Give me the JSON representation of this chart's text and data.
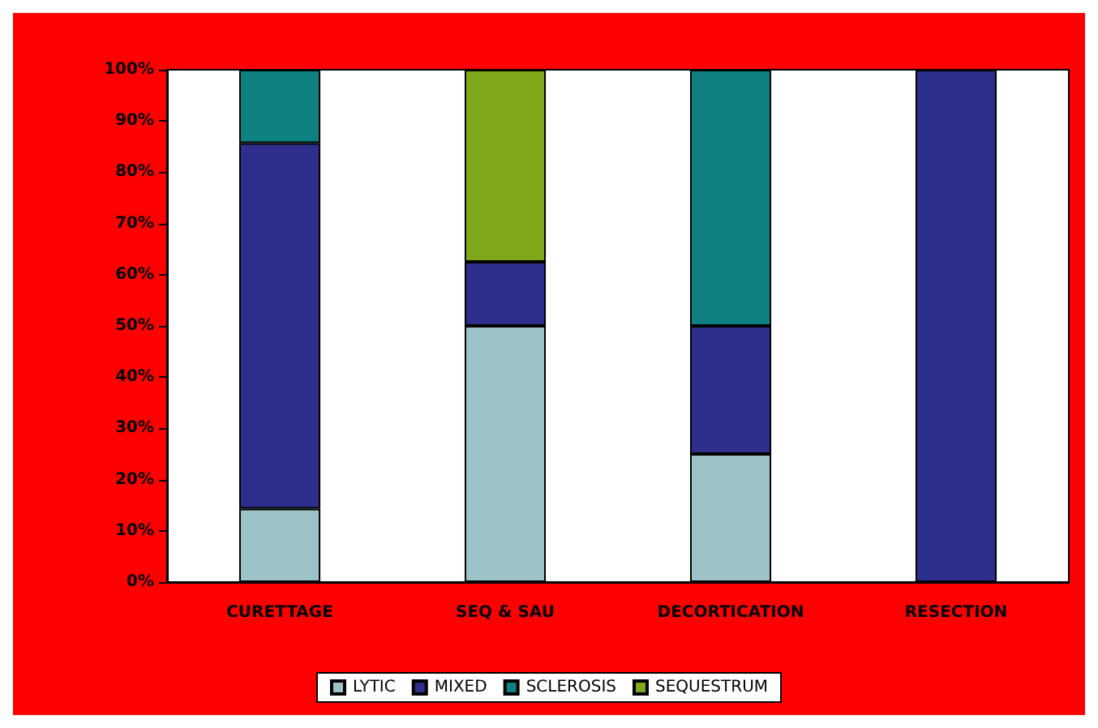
{
  "chart_data": {
    "type": "bar",
    "stacked": true,
    "categories": [
      "CURETTAGE",
      "SEQ & SAU",
      "DECORTICATION",
      "RESECTION"
    ],
    "series": [
      {
        "name": "LYTIC",
        "color": "#9cc4c8",
        "values": [
          14.3,
          50,
          25,
          0
        ]
      },
      {
        "name": "MIXED",
        "color": "#2e2e8c",
        "values": [
          71.4,
          12.5,
          25,
          100
        ]
      },
      {
        "name": "SCLEROSIS",
        "color": "#0f8080",
        "values": [
          14.3,
          0,
          50,
          0
        ]
      },
      {
        "name": "SEQUESTRUM",
        "color": "#7fa81a",
        "values": [
          0,
          37.5,
          0,
          0
        ]
      }
    ],
    "ylim": [
      0,
      100
    ],
    "yticks": [
      {
        "value": 0,
        "label": "0%"
      },
      {
        "value": 10,
        "label": "10%"
      },
      {
        "value": 20,
        "label": "20%"
      },
      {
        "value": 30,
        "label": "30%"
      },
      {
        "value": 40,
        "label": "40%"
      },
      {
        "value": 50,
        "label": "50%"
      },
      {
        "value": 60,
        "label": "60%"
      },
      {
        "value": 70,
        "label": "70%"
      },
      {
        "value": 80,
        "label": "80%"
      },
      {
        "value": 90,
        "label": "90%"
      },
      {
        "value": 100,
        "label": "100%"
      }
    ],
    "grid": false,
    "legend": "bottom"
  }
}
